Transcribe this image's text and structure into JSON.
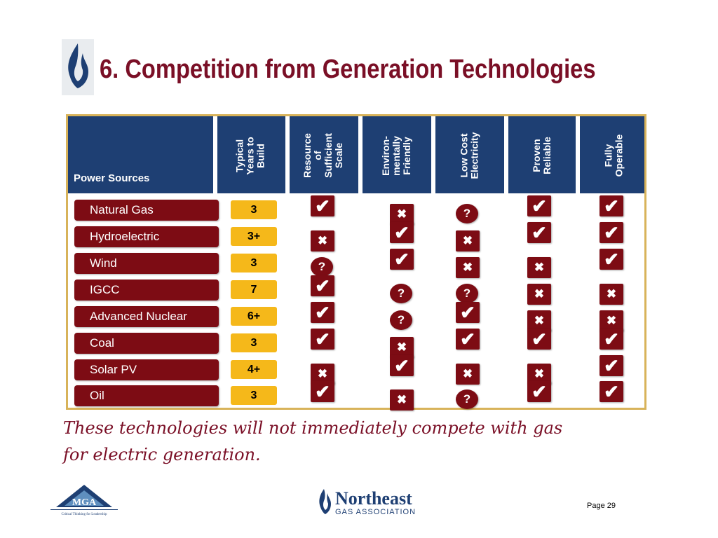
{
  "title": "6. Competition from Generation Technologies",
  "table": {
    "row_header": "Power Sources",
    "columns": [
      "Typical\nYears to\nBuild",
      "Resource\nof\nSufficient\nScale",
      "Environ-\nmentally\nFriendly",
      "Low Cost\nElectricity",
      "Proven\nReliable",
      "Fully\nOperable"
    ],
    "rows": [
      {
        "source": "Natural Gas",
        "years": "3",
        "cells": [
          "check",
          "cross",
          "question",
          "check",
          "check"
        ]
      },
      {
        "source": "Hydroelectric",
        "years": "3+",
        "cells": [
          "cross",
          "check",
          "cross",
          "check",
          "check"
        ]
      },
      {
        "source": "Wind",
        "years": "3",
        "cells": [
          "question",
          "check",
          "cross",
          "cross",
          "check"
        ]
      },
      {
        "source": "IGCC",
        "years": "7",
        "cells": [
          "check",
          "question",
          "question",
          "cross",
          "cross"
        ]
      },
      {
        "source": "Advanced Nuclear",
        "years": "6+",
        "cells": [
          "check",
          "question",
          "check",
          "cross",
          "cross"
        ]
      },
      {
        "source": "Coal",
        "years": "3",
        "cells": [
          "check",
          "cross",
          "check",
          "check",
          "check"
        ]
      },
      {
        "source": "Solar PV",
        "years": "4+",
        "cells": [
          "cross",
          "check",
          "cross",
          "cross",
          "check"
        ]
      },
      {
        "source": "Oil",
        "years": "3",
        "cells": [
          "check",
          "cross",
          "question",
          "check",
          "check"
        ]
      }
    ]
  },
  "note_line1": "These technologies will not immediately compete with gas",
  "note_line2": "for electric generation.",
  "symbols": {
    "check": "✔",
    "cross": "✖",
    "question": "?"
  },
  "logos": {
    "mga_letters": "MGA",
    "mga_tagline": "Critical Thinking for Leadership",
    "nga_name": "Northeast",
    "nga_sub": "GAS ASSOCIATION"
  },
  "page_label": "Page 29",
  "colors": {
    "title": "#7a0f26",
    "header": "#1e3f73",
    "cell": "#7d0c14",
    "years": "#f5b81a",
    "frame": "#d8b35a"
  }
}
